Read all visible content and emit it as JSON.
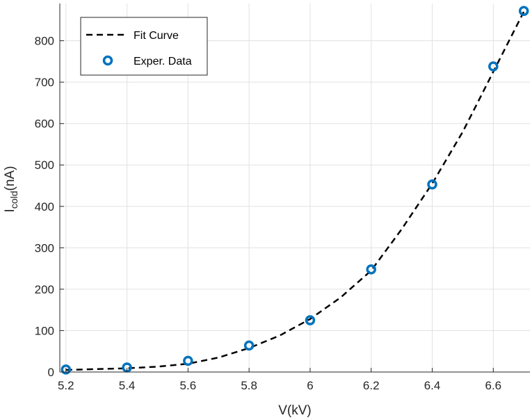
{
  "chart_data": {
    "type": "scatter",
    "title": "",
    "xlabel": "V(kV)",
    "ylabel": {
      "main": "I",
      "sub": "cold",
      "unit": "(nA)"
    },
    "xlim": [
      5.18,
      6.72
    ],
    "ylim": [
      0,
      890
    ],
    "xticks": [
      5.2,
      5.4,
      5.6,
      5.8,
      6.0,
      6.2,
      6.4,
      6.6
    ],
    "xtick_labels": [
      "5.2",
      "5.4",
      "5.6",
      "5.8",
      "6",
      "6.2",
      "6.4",
      "6.6"
    ],
    "yticks": [
      0,
      100,
      200,
      300,
      400,
      500,
      600,
      700,
      800
    ],
    "ytick_labels": [
      "0",
      "100",
      "200",
      "300",
      "400",
      "500",
      "600",
      "700",
      "800"
    ],
    "grid": true,
    "legend_position": "top-left",
    "series": [
      {
        "name": "Fit Curve",
        "kind": "line",
        "style": "dashed",
        "color": "#000000",
        "x": [
          5.2,
          5.3,
          5.4,
          5.5,
          5.6,
          5.7,
          5.8,
          5.9,
          6.0,
          6.1,
          6.2,
          6.3,
          6.4,
          6.5,
          6.6,
          6.7
        ],
        "y": [
          5,
          7,
          9,
          13,
          20,
          35,
          58,
          88,
          128,
          180,
          245,
          345,
          455,
          580,
          725,
          870
        ]
      },
      {
        "name": "Exper. Data",
        "kind": "markers",
        "marker": "circle",
        "color": "#0072BD",
        "x": [
          5.2,
          5.4,
          5.6,
          5.8,
          6.0,
          6.2,
          6.4,
          6.6,
          6.7
        ],
        "y": [
          6,
          11,
          27,
          64,
          125,
          248,
          453,
          738,
          872
        ]
      }
    ]
  }
}
